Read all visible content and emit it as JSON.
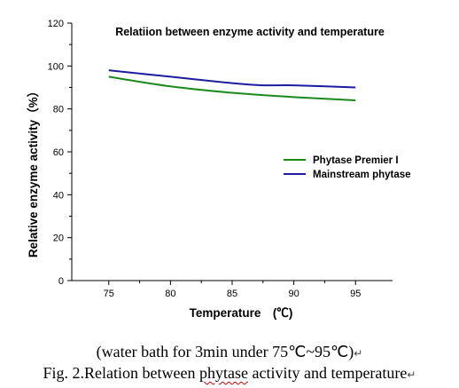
{
  "chart_data": {
    "type": "line",
    "title": "Relatiion between  enzyme activity and temperature",
    "xlabel": "Temperature　(℃)",
    "ylabel": "Relative enzyme activity（%）",
    "x_ticks": [
      75,
      80,
      85,
      90,
      95
    ],
    "y_ticks": [
      0,
      20,
      40,
      60,
      80,
      100,
      120
    ],
    "xlim": [
      72,
      98
    ],
    "ylim": [
      0,
      120
    ],
    "grid": false,
    "legend_position": "center-right",
    "series": [
      {
        "name": "Phytase Premier I",
        "color": "#1a8a1a",
        "x": [
          75,
          80,
          85,
          90,
          95
        ],
        "y": [
          95,
          90.5,
          87.5,
          85.5,
          84
        ]
      },
      {
        "name": "Mainstream phytase",
        "color": "#1c1ca0",
        "x": [
          75,
          80,
          85,
          87.5,
          90,
          95
        ],
        "y": [
          98,
          95,
          92,
          91,
          91,
          90
        ]
      }
    ]
  },
  "caption": {
    "note": "(water bath for 3min under 75℃~95℃)",
    "note_mark": "↵",
    "fig_prefix": "Fig. 2.Relation between ",
    "fig_underlined": "phytase",
    "fig_suffix": " activity and temperature",
    "fig_mark": "↵"
  }
}
